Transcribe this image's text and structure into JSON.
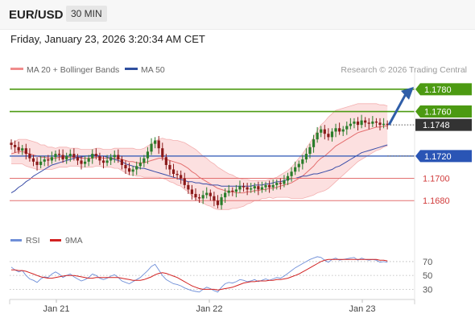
{
  "header": {
    "pair": "EUR/USD",
    "timeframe": "30 MIN"
  },
  "datetime": "Friday, January 23, 2026 3:20:34 AM CET",
  "legend": {
    "bollinger": "MA 20 + Bollinger Bands",
    "ma50": "MA 50",
    "credit": "Research © 2026 Trading Central"
  },
  "rsi_legend": {
    "rsi": "RSI",
    "ma": "9MA"
  },
  "colors": {
    "resistance": "#4c9a12",
    "support_blue": "#2a55b5",
    "support_red": "#e37070",
    "current": "#333333",
    "bull": "#2a7d2a",
    "bear": "#8b1a1a",
    "rsi": "#6f8fd8",
    "rsi_ma": "#d22222",
    "bollinger": "#fbd3d3",
    "ma50": "#3b4ea8"
  },
  "chart_data": [
    {
      "type": "candlestick",
      "symbol": "EUR/USD",
      "timeframe": "30 MIN",
      "x_tick_labels": [
        "Jan 21",
        "Jan 22",
        "Jan 23"
      ],
      "ylim": [
        1.1665,
        1.179
      ],
      "levels": [
        {
          "value": 1.178,
          "label": "1.1780",
          "kind": "resistance"
        },
        {
          "value": 1.176,
          "label": "1.1760",
          "kind": "resistance"
        },
        {
          "value": 1.1748,
          "label": "1.1748",
          "kind": "current"
        },
        {
          "value": 1.172,
          "label": "1.1720",
          "kind": "support_blue"
        },
        {
          "value": 1.17,
          "label": "1.1700",
          "kind": "support_red"
        },
        {
          "value": 1.168,
          "label": "1.1680",
          "kind": "support_red"
        }
      ],
      "close_series": [
        1.173,
        1.1728,
        1.1725,
        1.1727,
        1.1722,
        1.1718,
        1.1715,
        1.1712,
        1.1715,
        1.1717,
        1.1716,
        1.1719,
        1.1722,
        1.1721,
        1.1717,
        1.172,
        1.1722,
        1.1719,
        1.1716,
        1.1713,
        1.1715,
        1.1718,
        1.1722,
        1.172,
        1.1716,
        1.1714,
        1.1716,
        1.1719,
        1.1721,
        1.1717,
        1.1712,
        1.1709,
        1.1706,
        1.1708,
        1.1711,
        1.1714,
        1.1718,
        1.1724,
        1.1731,
        1.1734,
        1.1727,
        1.1719,
        1.1712,
        1.1708,
        1.1704,
        1.1703,
        1.17,
        1.1694,
        1.169,
        1.1686,
        1.1683,
        1.1682,
        1.1685,
        1.1687,
        1.1684,
        1.168,
        1.1676,
        1.1683,
        1.1687,
        1.1689,
        1.1688,
        1.169,
        1.1693,
        1.1692,
        1.169,
        1.1691,
        1.1693,
        1.169,
        1.1692,
        1.1694,
        1.1692,
        1.1694,
        1.1696,
        1.1695,
        1.1698,
        1.1702,
        1.1706,
        1.171,
        1.1713,
        1.1717,
        1.1722,
        1.1728,
        1.1735,
        1.1741,
        1.1744,
        1.174,
        1.1737,
        1.1742,
        1.1745,
        1.1742,
        1.1744,
        1.1747,
        1.1749,
        1.1751,
        1.1748,
        1.1752,
        1.175,
        1.1749,
        1.1751,
        1.175,
        1.1748,
        1.1749,
        1.1748
      ],
      "ma50_series": [
        1.1687,
        1.1689,
        1.1692,
        1.1694,
        1.1697,
        1.1699,
        1.1702,
        1.1704,
        1.1706,
        1.1708,
        1.171,
        1.1712,
        1.1713,
        1.1714,
        1.1715,
        1.1716,
        1.1717,
        1.1718,
        1.1719,
        1.1719,
        1.172,
        1.172,
        1.1721,
        1.1721,
        1.172,
        1.172,
        1.1719,
        1.1718,
        1.1717,
        1.1716,
        1.1715,
        1.1713,
        1.1712,
        1.1711,
        1.171,
        1.1709,
        1.1709,
        1.1708,
        1.1707,
        1.1706,
        1.1705,
        1.1704,
        1.1703,
        1.1702,
        1.1701,
        1.17,
        1.1699,
        1.1698,
        1.1697,
        1.1697,
        1.1696,
        1.1696,
        1.1695,
        1.1695,
        1.1694,
        1.1694,
        1.1694,
        1.1693,
        1.1693,
        1.1693,
        1.1693,
        1.1693,
        1.1693,
        1.1693,
        1.1693,
        1.1693,
        1.1694,
        1.1694,
        1.1694,
        1.1695,
        1.1695,
        1.1696,
        1.1697,
        1.1697,
        1.1698,
        1.1699,
        1.17,
        1.17,
        1.1701,
        1.1702,
        1.1702,
        1.1703,
        1.1704,
        1.1704,
        1.1705,
        1.1706,
        1.1707,
        1.1708,
        1.171,
        1.1711,
        1.1713,
        1.1715,
        1.1717,
        1.1719,
        1.1721,
        1.1723,
        1.1724,
        1.1725,
        1.1726,
        1.1727,
        1.1728,
        1.1729,
        1.173
      ],
      "bollinger_mid": [
        1.1722,
        1.1723,
        1.1724,
        1.1724,
        1.1723,
        1.1722,
        1.1721,
        1.172,
        1.1719,
        1.1719,
        1.1718,
        1.1718,
        1.1718,
        1.1719,
        1.1719,
        1.1719,
        1.1719,
        1.1719,
        1.1719,
        1.1718,
        1.1718,
        1.1718,
        1.1718,
        1.1719,
        1.1719,
        1.1718,
        1.1718,
        1.1718,
        1.1718,
        1.1718,
        1.1717,
        1.1716,
        1.1715,
        1.1715,
        1.1714,
        1.1714,
        1.1714,
        1.1715,
        1.1716,
        1.1717,
        1.1718,
        1.1718,
        1.1717,
        1.1716,
        1.1715,
        1.1714,
        1.1713,
        1.1711,
        1.1709,
        1.1706,
        1.1704,
        1.1701,
        1.1699,
        1.1697,
        1.1695,
        1.1693,
        1.1691,
        1.169,
        1.1689,
        1.1688,
        1.1688,
        1.1687,
        1.1687,
        1.1687,
        1.1688,
        1.1688,
        1.1689,
        1.1689,
        1.169,
        1.169,
        1.1691,
        1.1691,
        1.1692,
        1.1693,
        1.1694,
        1.1695,
        1.1696,
        1.1698,
        1.17,
        1.1702,
        1.1705,
        1.1708,
        1.1711,
        1.1715,
        1.1718,
        1.172,
        1.1723,
        1.1726,
        1.1729,
        1.1731,
        1.1733,
        1.1735,
        1.1737,
        1.1739,
        1.1741,
        1.1742,
        1.1743,
        1.1744,
        1.1745,
        1.1746,
        1.1746,
        1.1747,
        1.1747
      ],
      "bollinger_width": [
        0.0009,
        0.001,
        0.0011,
        0.0011,
        0.0012,
        0.0012,
        0.0012,
        0.0012,
        0.0011,
        0.0011,
        0.001,
        0.001,
        0.0009,
        0.0009,
        0.0009,
        0.0009,
        0.0008,
        0.0008,
        0.0008,
        0.0008,
        0.0008,
        0.0008,
        0.0008,
        0.0008,
        0.0008,
        0.0008,
        0.0008,
        0.0008,
        0.0009,
        0.0009,
        0.001,
        0.0011,
        0.0012,
        0.0012,
        0.0012,
        0.0012,
        0.0013,
        0.0014,
        0.0015,
        0.0016,
        0.0017,
        0.0018,
        0.0018,
        0.0019,
        0.0019,
        0.002,
        0.002,
        0.0021,
        0.0021,
        0.0022,
        0.0022,
        0.0022,
        0.0021,
        0.0021,
        0.002,
        0.002,
        0.0019,
        0.0018,
        0.0017,
        0.0016,
        0.0015,
        0.0014,
        0.0013,
        0.0012,
        0.0011,
        0.001,
        0.0009,
        0.0009,
        0.0008,
        0.0008,
        0.0008,
        0.0009,
        0.0009,
        0.001,
        0.0011,
        0.0012,
        0.0014,
        0.0016,
        0.0018,
        0.002,
        0.0022,
        0.0024,
        0.0026,
        0.0028,
        0.003,
        0.0031,
        0.0032,
        0.0032,
        0.0032,
        0.0031,
        0.003,
        0.0029,
        0.0028,
        0.0027,
        0.0026,
        0.0025,
        0.0024,
        0.0023,
        0.0022,
        0.0021,
        0.002,
        0.0019,
        0.0018
      ]
    },
    {
      "type": "line",
      "title": "RSI",
      "series": [
        {
          "name": "RSI",
          "values": [
            62,
            58,
            55,
            57,
            50,
            45,
            43,
            40,
            45,
            48,
            47,
            52,
            55,
            52,
            47,
            50,
            52,
            48,
            45,
            42,
            44,
            47,
            52,
            50,
            46,
            44,
            46,
            49,
            51,
            47,
            42,
            40,
            38,
            41,
            44,
            47,
            52,
            57,
            63,
            66,
            58,
            50,
            44,
            41,
            38,
            37,
            35,
            32,
            30,
            28,
            27,
            26,
            30,
            33,
            31,
            28,
            26,
            33,
            38,
            40,
            39,
            41,
            44,
            43,
            41,
            42,
            44,
            41,
            43,
            45,
            43,
            45,
            47,
            46,
            49,
            53,
            57,
            61,
            64,
            67,
            70,
            73,
            75,
            77,
            76,
            72,
            69,
            73,
            75,
            72,
            73,
            74,
            75,
            76,
            72,
            75,
            73,
            72,
            73,
            72,
            69,
            70,
            69
          ]
        },
        {
          "name": "9MA",
          "values": [
            58,
            58,
            57,
            57,
            56,
            54,
            52,
            50,
            48,
            47,
            46,
            46,
            47,
            48,
            49,
            50,
            50,
            50,
            49,
            48,
            47,
            46,
            46,
            47,
            47,
            47,
            47,
            47,
            47,
            47,
            46,
            45,
            44,
            43,
            43,
            43,
            44,
            46,
            48,
            51,
            53,
            54,
            53,
            51,
            49,
            47,
            44,
            41,
            38,
            35,
            33,
            31,
            30,
            30,
            30,
            30,
            29,
            30,
            31,
            32,
            33,
            35,
            37,
            39,
            40,
            41,
            41,
            42,
            42,
            42,
            43,
            43,
            44,
            44,
            45,
            46,
            48,
            50,
            52,
            55,
            58,
            61,
            64,
            67,
            70,
            72,
            73,
            73,
            73,
            73,
            73,
            73,
            73,
            73,
            73,
            73,
            73,
            73,
            73,
            73,
            72,
            72,
            71
          ]
        }
      ],
      "y_tick_labels": [
        "70",
        "50",
        "30"
      ],
      "ylim": [
        20,
        85
      ]
    }
  ]
}
